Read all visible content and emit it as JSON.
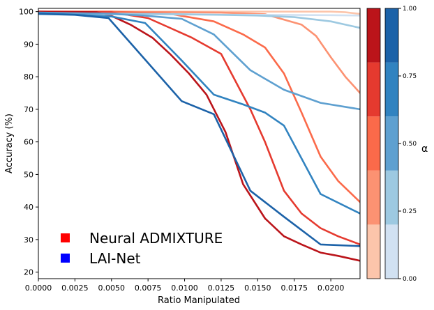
{
  "chart_data": {
    "type": "line",
    "xlabel": "Ratio Manipulated",
    "ylabel": "Accuracy (%)",
    "xlim": [
      0,
      0.022
    ],
    "ylim": [
      18,
      101
    ],
    "x_ticks": [
      "0.0000",
      "0.0025",
      "0.0050",
      "0.0075",
      "0.0100",
      "0.0125",
      "0.0150",
      "0.0175",
      "0.0200"
    ],
    "y_ticks": [
      "20",
      "30",
      "40",
      "50",
      "60",
      "70",
      "80",
      "90",
      "100"
    ],
    "grid": false,
    "legend": {
      "placement": "lower-left",
      "entries": [
        {
          "label": "Neural ADMIXTURE",
          "color": "#ff0000"
        },
        {
          "label": "LAI-Net",
          "color": "#0000ff"
        }
      ]
    },
    "colorbar": {
      "title": "α",
      "range": [
        0,
        1
      ],
      "ticks": [
        "0.00",
        "0.25",
        "0.50",
        "0.75",
        "1.00"
      ],
      "reds": [
        "#fcc5ab",
        "#fc9272",
        "#fb6a4a",
        "#e53a2f",
        "#bb141a"
      ],
      "blues": [
        "#d1e1f2",
        "#9dc9e1",
        "#5ea0d0",
        "#3183c0",
        "#1c62a8"
      ]
    },
    "series": [
      {
        "group": "Neural ADMIXTURE",
        "color": "#fcc5ab",
        "x": [
          0,
          0.005,
          0.01,
          0.015,
          0.02,
          0.021,
          0.022
        ],
        "y": [
          100,
          100,
          100,
          100,
          100,
          99.8,
          99.3
        ]
      },
      {
        "group": "Neural ADMIXTURE",
        "color": "#fc9272",
        "x": [
          0,
          0.005,
          0.01,
          0.0125,
          0.0155,
          0.018,
          0.019,
          0.02,
          0.021,
          0.022
        ],
        "y": [
          100,
          100,
          99.8,
          99.7,
          99.2,
          96,
          92.5,
          86,
          80,
          75
        ]
      },
      {
        "group": "Neural ADMIXTURE",
        "color": "#fb6a4a",
        "x": [
          0,
          0.005,
          0.009,
          0.012,
          0.014,
          0.0155,
          0.0168,
          0.018,
          0.0193,
          0.0205,
          0.022
        ],
        "y": [
          100,
          100,
          99.3,
          97,
          93,
          89,
          81,
          69,
          55.5,
          48,
          41.5
        ]
      },
      {
        "group": "Neural ADMIXTURE",
        "color": "#e53a2f",
        "x": [
          0,
          0.005,
          0.0075,
          0.009,
          0.0105,
          0.0125,
          0.0145,
          0.0155,
          0.0168,
          0.018,
          0.0193,
          0.0205,
          0.022
        ],
        "y": [
          100,
          99.8,
          98,
          95,
          92,
          87,
          70,
          60,
          45,
          38,
          33.5,
          31,
          28.5
        ]
      },
      {
        "group": "Neural ADMIXTURE",
        "color": "#bb141a",
        "x": [
          0,
          0.004,
          0.005,
          0.0063,
          0.0078,
          0.009,
          0.0103,
          0.0115,
          0.0128,
          0.014,
          0.0155,
          0.0168,
          0.018,
          0.0193,
          0.0205,
          0.022
        ],
        "y": [
          100,
          99.8,
          98.7,
          96,
          92,
          87,
          81,
          74.5,
          63,
          47,
          36.5,
          31,
          28.5,
          26,
          25,
          23.5
        ]
      },
      {
        "group": "LAI-Net",
        "color": "#d1e1f2",
        "x": [
          0,
          0.005,
          0.01,
          0.015,
          0.02,
          0.022
        ],
        "y": [
          99.2,
          99.2,
          99.1,
          99,
          98.9,
          98.8
        ]
      },
      {
        "group": "LAI-Net",
        "color": "#9dc9e1",
        "x": [
          0,
          0.005,
          0.01,
          0.0125,
          0.015,
          0.0175,
          0.02,
          0.021,
          0.022
        ],
        "y": [
          99.5,
          99.4,
          99.2,
          99,
          98.8,
          98.3,
          97,
          96,
          95
        ]
      },
      {
        "group": "LAI-Net",
        "color": "#5ea0d0",
        "x": [
          0,
          0.005,
          0.0072,
          0.0098,
          0.012,
          0.0145,
          0.0168,
          0.0193,
          0.022
        ],
        "y": [
          99.7,
          99.3,
          98.8,
          97.8,
          93,
          82,
          76,
          72,
          70
        ]
      },
      {
        "group": "LAI-Net",
        "color": "#3183c0",
        "x": [
          0,
          0.005,
          0.0073,
          0.0098,
          0.012,
          0.014,
          0.0155,
          0.0168,
          0.0193,
          0.022
        ],
        "y": [
          99.6,
          98.5,
          96.5,
          85,
          74.5,
          71.5,
          69,
          65,
          44,
          38
        ]
      },
      {
        "group": "LAI-Net",
        "color": "#1c62a8",
        "x": [
          0,
          0.0025,
          0.0048,
          0.0098,
          0.012,
          0.0145,
          0.0168,
          0.0193,
          0.022
        ],
        "y": [
          99.3,
          99,
          98,
          72.5,
          68.5,
          45,
          37,
          28.5,
          28
        ]
      }
    ]
  }
}
